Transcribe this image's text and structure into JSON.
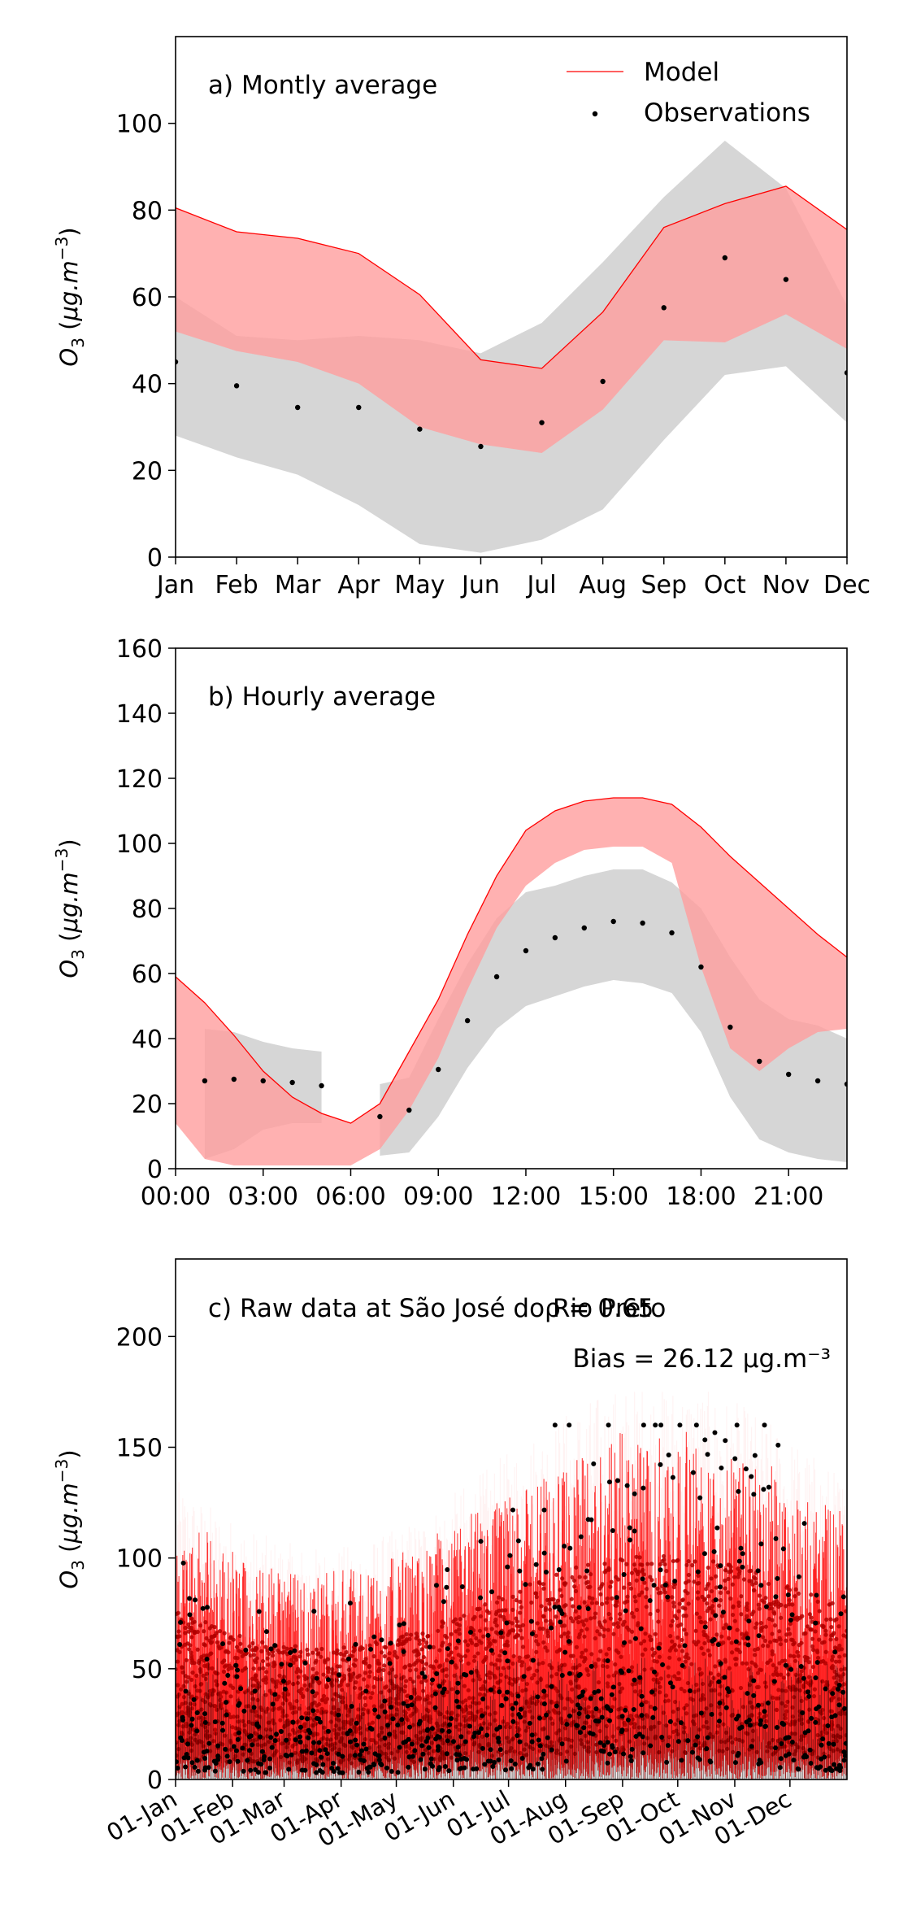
{
  "chart_data": [
    {
      "type": "area",
      "title": "a) Montly average",
      "ylabel": "O3 (μg.m⁻³)",
      "ylim": [
        0,
        120
      ],
      "yticks": [
        0,
        20,
        40,
        60,
        80,
        100
      ],
      "categories": [
        "Jan",
        "Feb",
        "Mar",
        "Apr",
        "May",
        "Jun",
        "Jul",
        "Aug",
        "Sep",
        "Oct",
        "Nov",
        "Dec"
      ],
      "legend": {
        "position": "top-right",
        "entries": [
          "Model",
          "Observations"
        ]
      },
      "series": [
        {
          "name": "Observations",
          "values": [
            45,
            39.5,
            34.5,
            34.5,
            29.5,
            25.5,
            31,
            40.5,
            57.5,
            69,
            64,
            42.5
          ]
        },
        {
          "name": "Model",
          "upper": [
            80.5,
            75,
            73.5,
            70,
            60.5,
            45.5,
            43.5,
            56.5,
            76,
            81.5,
            85.5,
            75.5
          ],
          "lower": [
            52,
            47.5,
            45,
            40,
            30,
            26,
            24,
            34,
            50,
            49.5,
            56,
            48
          ]
        },
        {
          "name": "Observations range",
          "upper": [
            60,
            51,
            50,
            51,
            50,
            47,
            54,
            68,
            83,
            96,
            85,
            58
          ],
          "lower": [
            28,
            23,
            19,
            12,
            3,
            1,
            4,
            11,
            27,
            42,
            44,
            31
          ]
        }
      ],
      "colors": {
        "model": "#ff0000",
        "model_fill": "#ff9e9e",
        "obs_fill": "#c4c4c4",
        "obs_point": "#000000"
      }
    },
    {
      "type": "area",
      "title": "b) Hourly average",
      "ylabel": "O3 (μg.m⁻³)",
      "ylim": [
        0,
        160
      ],
      "yticks": [
        0,
        20,
        40,
        60,
        80,
        100,
        120,
        140,
        160
      ],
      "x": [
        0,
        1,
        2,
        3,
        4,
        5,
        6,
        7,
        8,
        9,
        10,
        11,
        12,
        13,
        14,
        15,
        16,
        17,
        18,
        19,
        20,
        21,
        22,
        23
      ],
      "xticklabels": [
        "00:00",
        "03:00",
        "06:00",
        "09:00",
        "12:00",
        "15:00",
        "18:00",
        "21:00"
      ],
      "series": [
        {
          "name": "Observations",
          "values": [
            null,
            27,
            27.5,
            27,
            26.5,
            25.5,
            null,
            16,
            18,
            30.5,
            45.5,
            59,
            67,
            71,
            74,
            76,
            75.5,
            72.5,
            62,
            43.5,
            33,
            29,
            27,
            26
          ]
        },
        {
          "name": "Model",
          "upper": [
            59,
            51,
            41,
            30,
            22,
            17,
            14,
            20,
            36,
            52,
            72,
            90,
            104,
            110,
            113,
            114,
            114,
            112,
            105,
            96,
            88,
            80,
            72,
            65
          ],
          "lower": [
            14,
            3,
            1,
            1,
            1,
            1,
            1,
            6,
            18,
            34,
            55,
            74,
            87,
            94,
            98,
            99,
            99,
            94,
            62,
            37,
            30,
            37,
            42,
            43
          ]
        },
        {
          "name": "Observations range",
          "upper": [
            null,
            43,
            42,
            39,
            37,
            36,
            null,
            26,
            28,
            46,
            63,
            77,
            85,
            87,
            90,
            92,
            92,
            88,
            80,
            65,
            52,
            46,
            44,
            40
          ],
          "lower": [
            null,
            3,
            6,
            12,
            14,
            14,
            null,
            4,
            5,
            16,
            31,
            43,
            50,
            53,
            56,
            58,
            57,
            54,
            42,
            22,
            9,
            5,
            3,
            2
          ]
        }
      ],
      "colors": {
        "model": "#ff0000",
        "model_fill": "#ff9e9e",
        "obs_fill": "#c4c4c4",
        "obs_point": "#000000"
      }
    },
    {
      "type": "line",
      "title": "c) Raw data at São José do Rio Preto",
      "annotations": [
        "ρ = 0.65",
        "Bias = 26.12 μg.m⁻³"
      ],
      "ylabel": "O3 (μg.m⁻³)",
      "ylim": [
        0,
        235
      ],
      "yticks": [
        0,
        50,
        100,
        150,
        200
      ],
      "xticklabels": [
        "01-Jan",
        "01-Feb",
        "01-Mar",
        "01-Apr",
        "01-May",
        "01-Jun",
        "01-Jul",
        "01-Aug",
        "01-Sep",
        "01-Oct",
        "01-Nov",
        "01-Dec"
      ],
      "series": [
        {
          "name": "Model",
          "type": "line",
          "description": "hourly model time series, 0–165 μg.m⁻³"
        },
        {
          "name": "Observations",
          "type": "scatter",
          "description": "hourly observations, 0–160 μg.m⁻³"
        }
      ],
      "colors": {
        "model": "#ff0000",
        "obs_point": "#000000"
      }
    }
  ]
}
